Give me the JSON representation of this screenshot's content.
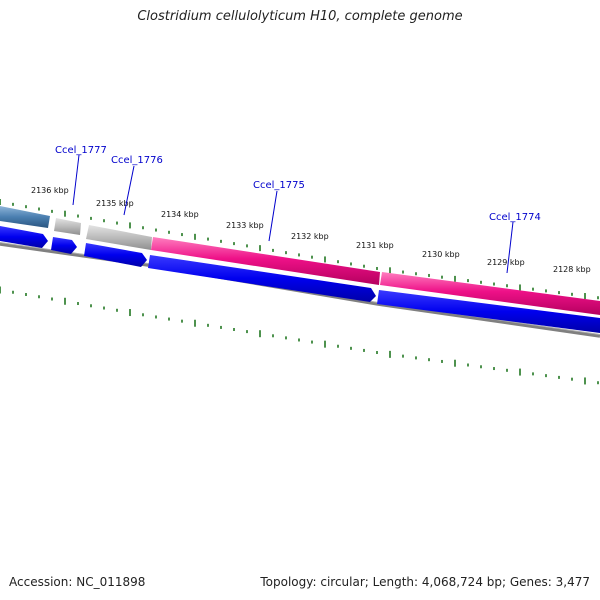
{
  "title": "Clostridium cellulolyticum H10, complete genome",
  "footer": {
    "accession": "Accession: NC_011898",
    "summary": "Topology: circular; Length: 4,068,724 bp; Genes: 3,477"
  },
  "ticks": [
    "2136 kbp",
    "2135 kbp",
    "2134 kbp",
    "2133 kbp",
    "2132 kbp",
    "2131 kbp",
    "2130 kbp",
    "2129 kbp",
    "2128 kbp"
  ],
  "genes": [
    "Ccel_1777",
    "Ccel_1776",
    "Ccel_1775",
    "Ccel_1774"
  ],
  "colors": {
    "gene_forward": "#0000ee",
    "gene_pink": "#ee1188",
    "gene_grey": "#bbbbbb",
    "gene_steelblue": "#4a7fb0",
    "backbone": "#888888",
    "tick_marks": "#227722",
    "gene_label": "#0000cc"
  }
}
